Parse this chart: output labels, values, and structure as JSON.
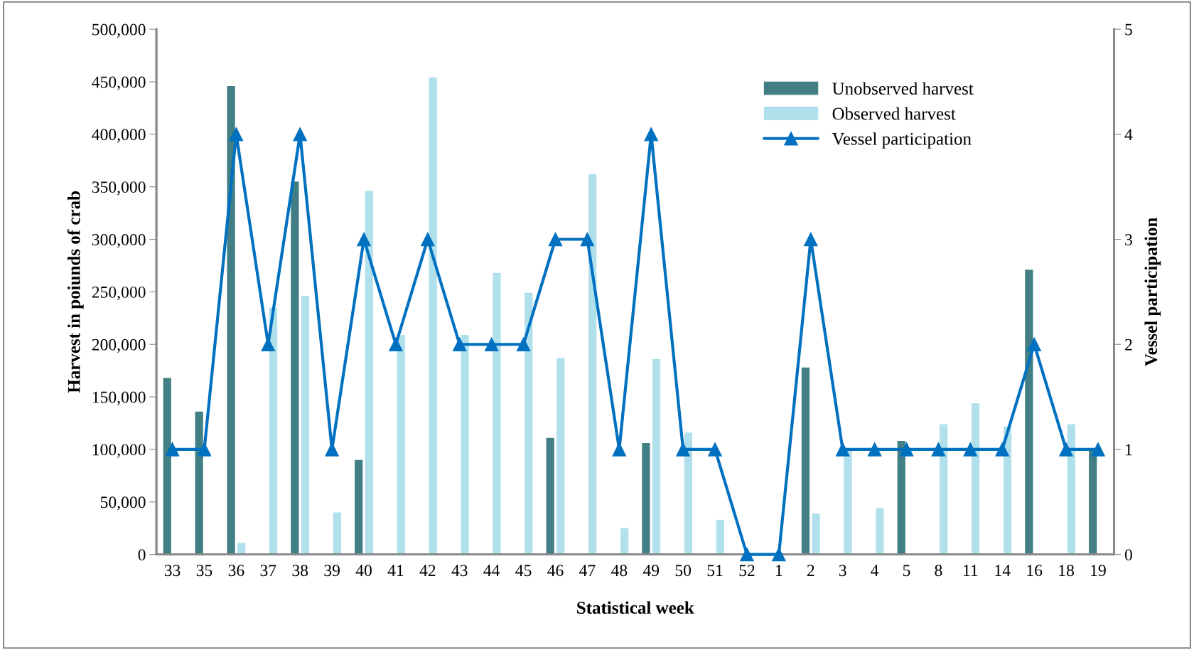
{
  "chart_data": {
    "type": "bar",
    "xlabel": "Statistical week",
    "ylabel": "Harvest in poiunds of crab",
    "y2label": "Vessel participation",
    "categories": [
      "33",
      "35",
      "36",
      "37",
      "38",
      "39",
      "40",
      "41",
      "42",
      "43",
      "44",
      "45",
      "46",
      "47",
      "48",
      "49",
      "50",
      "51",
      "52",
      "1",
      "2",
      "3",
      "4",
      "5",
      "8",
      "11",
      "14",
      "16",
      "18",
      "19"
    ],
    "series": [
      {
        "name": "Unobserved harvest",
        "color": "#417f85",
        "values": [
          168000,
          136000,
          446000,
          0,
          355000,
          0,
          90000,
          0,
          0,
          0,
          0,
          0,
          111000,
          0,
          0,
          106000,
          0,
          0,
          0,
          0,
          178000,
          0,
          0,
          108000,
          0,
          0,
          0,
          271000,
          0,
          100000
        ]
      },
      {
        "name": "Observed harvest",
        "color": "#b0e0ec",
        "values": [
          0,
          0,
          11000,
          235000,
          246000,
          40000,
          346000,
          209000,
          454000,
          209000,
          268000,
          249000,
          187000,
          362000,
          25000,
          186000,
          116000,
          33000,
          0,
          0,
          39000,
          100000,
          44000,
          0,
          124000,
          144000,
          122000,
          0,
          124000,
          0
        ]
      },
      {
        "name": "Vessel participation",
        "type": "line",
        "axis": "y2",
        "color": "#0070c0",
        "values": [
          1,
          1,
          4,
          2,
          4,
          1,
          3,
          2,
          3,
          2,
          2,
          2,
          3,
          3,
          1,
          4,
          1,
          1,
          0,
          0,
          3,
          1,
          1,
          1,
          1,
          1,
          1,
          2,
          1,
          1
        ]
      }
    ],
    "ylim": [
      0,
      500000
    ],
    "yticks": [
      {
        "value": 0,
        "label": "0"
      },
      {
        "value": 50000,
        "label": "50,000"
      },
      {
        "value": 100000,
        "label": "100,000"
      },
      {
        "value": 150000,
        "label": "150,000"
      },
      {
        "value": 200000,
        "label": "200,000"
      },
      {
        "value": 250000,
        "label": "250,000"
      },
      {
        "value": 300000,
        "label": "300,000"
      },
      {
        "value": 350000,
        "label": "350,000"
      },
      {
        "value": 400000,
        "label": "400,000"
      },
      {
        "value": 450000,
        "label": "450,000"
      },
      {
        "value": 500000,
        "label": "500,000"
      }
    ],
    "y2lim": [
      0,
      5
    ],
    "y2ticks": [
      0,
      1,
      2,
      3,
      4,
      5
    ],
    "legend": "top right",
    "marker": "triangle",
    "line_style": "solid",
    "grid": false
  }
}
